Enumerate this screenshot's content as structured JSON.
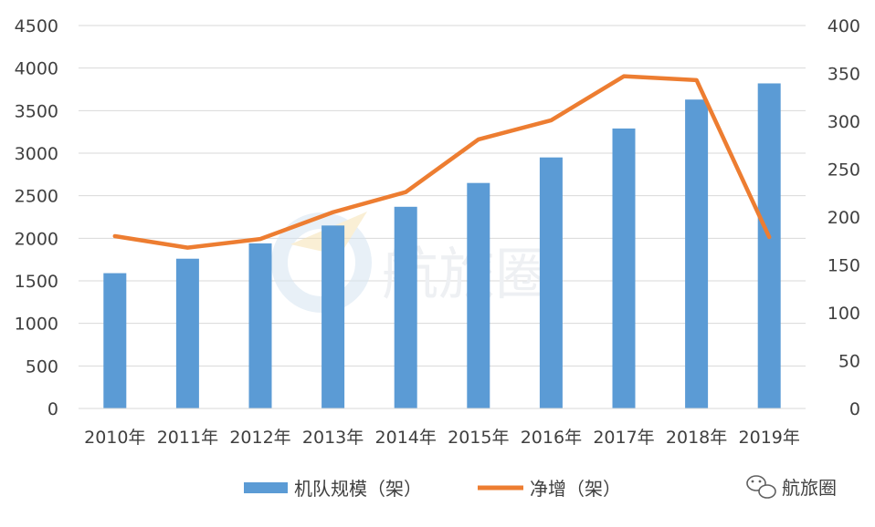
{
  "chart_data": {
    "type": "bar",
    "categories": [
      "2010年",
      "2011年",
      "2012年",
      "2013年",
      "2014年",
      "2015年",
      "2016年",
      "2017年",
      "2018年",
      "2019年"
    ],
    "series": [
      {
        "name": "机队规模（架）",
        "chart": "bar",
        "axis": "left",
        "color": "#5b9bd5",
        "values": [
          1590,
          1760,
          1940,
          2150,
          2370,
          2650,
          2950,
          3290,
          3630,
          3820
        ]
      },
      {
        "name": "净增（架）",
        "chart": "line",
        "axis": "right",
        "color": "#ed7d31",
        "values": [
          180,
          168,
          177,
          205,
          226,
          281,
          301,
          347,
          343,
          179
        ]
      }
    ],
    "y_left": {
      "min": 0,
      "max": 4500,
      "step": 500,
      "ticks": [
        "0",
        "500",
        "1000",
        "1500",
        "2000",
        "2500",
        "3000",
        "3500",
        "4000",
        "4500"
      ]
    },
    "y_right": {
      "min": 0,
      "max": 400,
      "step": 50,
      "ticks": [
        "0",
        "50",
        "100",
        "150",
        "200",
        "250",
        "300",
        "350",
        "400"
      ]
    },
    "grid": true,
    "legend_position": "bottom"
  },
  "watermark": {
    "center_text": "航旅圈",
    "corner_text": "航旅圈",
    "corner_icon": "wechat-icon"
  }
}
